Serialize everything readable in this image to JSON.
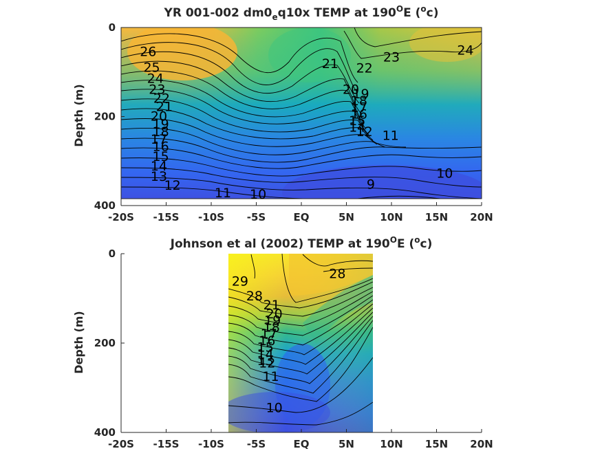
{
  "chart_data": [
    {
      "type": "heatmap",
      "title_parts": [
        "YR 001-002 dm0",
        "e",
        "q10x TEMP at 190",
        "O",
        "E (",
        "o",
        "c)"
      ],
      "ylabel": "Depth (m)",
      "xticks": [
        "-20S",
        "-15S",
        "-10S",
        "-5S",
        "EQ",
        "5N",
        "10N",
        "15N",
        "20N"
      ],
      "yticks": [
        "0",
        "200",
        "400"
      ],
      "xlim": [
        -20,
        20
      ],
      "ylim": [
        0,
        400
      ],
      "data_extent": {
        "lat": [
          -20,
          20
        ],
        "depth": [
          5,
          385
        ]
      },
      "colormap": [
        "#3e26a8",
        "#2e58f0",
        "#1d8fd9",
        "#18b2a6",
        "#59c96b",
        "#b7c93a",
        "#f9bd38",
        "#f9fb15"
      ],
      "clim": [
        9,
        29
      ],
      "contour_labels": [
        {
          "text": "26",
          "lat": -17.0,
          "depth": 55
        },
        {
          "text": "25",
          "lat": -16.6,
          "depth": 90
        },
        {
          "text": "24",
          "lat": -16.2,
          "depth": 115
        },
        {
          "text": "23",
          "lat": -16.0,
          "depth": 140
        },
        {
          "text": "22",
          "lat": -15.5,
          "depth": 160
        },
        {
          "text": "21",
          "lat": -15.2,
          "depth": 178
        },
        {
          "text": "20",
          "lat": -15.8,
          "depth": 200
        },
        {
          "text": "19",
          "lat": -15.6,
          "depth": 218
        },
        {
          "text": "18",
          "lat": -15.6,
          "depth": 235
        },
        {
          "text": "17",
          "lat": -15.8,
          "depth": 252
        },
        {
          "text": "16",
          "lat": -15.6,
          "depth": 268
        },
        {
          "text": "15",
          "lat": -15.6,
          "depth": 290
        },
        {
          "text": "14",
          "lat": -15.8,
          "depth": 312
        },
        {
          "text": "13",
          "lat": -15.8,
          "depth": 335
        },
        {
          "text": "12",
          "lat": -14.3,
          "depth": 355
        },
        {
          "text": "11",
          "lat": -8.7,
          "depth": 372
        },
        {
          "text": "10",
          "lat": -4.8,
          "depth": 375
        },
        {
          "text": "21",
          "lat": 3.2,
          "depth": 82
        },
        {
          "text": "22",
          "lat": 7.0,
          "depth": 92
        },
        {
          "text": "23",
          "lat": 10.0,
          "depth": 67
        },
        {
          "text": "24",
          "lat": 18.2,
          "depth": 52
        },
        {
          "text": "20",
          "lat": 5.5,
          "depth": 140
        },
        {
          "text": "19",
          "lat": 6.6,
          "depth": 150
        },
        {
          "text": "18",
          "lat": 6.4,
          "depth": 165
        },
        {
          "text": "17",
          "lat": 6.4,
          "depth": 180
        },
        {
          "text": "16",
          "lat": 6.4,
          "depth": 195
        },
        {
          "text": "15",
          "lat": 6.2,
          "depth": 210
        },
        {
          "text": "14",
          "lat": 6.2,
          "depth": 225
        },
        {
          "text": "12",
          "lat": 7.0,
          "depth": 235
        },
        {
          "text": "11",
          "lat": 9.9,
          "depth": 243
        },
        {
          "text": "10",
          "lat": 15.9,
          "depth": 328
        },
        {
          "text": "9",
          "lat": 7.7,
          "depth": 353
        }
      ]
    },
    {
      "type": "heatmap",
      "title_parts": [
        "Johnson et al (2002) TEMP at 190",
        "O",
        "E (",
        "o",
        "c)"
      ],
      "ylabel": "Depth (m)",
      "xticks": [
        "-20S",
        "-15S",
        "-10S",
        "-5S",
        "EQ",
        "5N",
        "10N",
        "15N",
        "20N"
      ],
      "yticks": [
        "0",
        "200",
        "400"
      ],
      "xlim": [
        -20,
        20
      ],
      "ylim": [
        0,
        400
      ],
      "data_extent": {
        "lat": [
          -8,
          8
        ],
        "depth": [
          0,
          400
        ]
      },
      "colormap": [
        "#3e26a8",
        "#2e58f0",
        "#1d8fd9",
        "#18b2a6",
        "#59c96b",
        "#b7c93a",
        "#f9bd38",
        "#f9fb15"
      ],
      "clim": [
        9,
        29
      ],
      "contour_labels": [
        {
          "text": "29",
          "lat": -6.8,
          "depth": 62
        },
        {
          "text": "28",
          "lat": -5.2,
          "depth": 95
        },
        {
          "text": "28",
          "lat": 4.0,
          "depth": 45
        },
        {
          "text": "21",
          "lat": -3.3,
          "depth": 115
        },
        {
          "text": "20",
          "lat": -3.0,
          "depth": 135
        },
        {
          "text": "19",
          "lat": -3.2,
          "depth": 150
        },
        {
          "text": "18",
          "lat": -3.3,
          "depth": 165
        },
        {
          "text": "17",
          "lat": -3.6,
          "depth": 180
        },
        {
          "text": "16",
          "lat": -3.8,
          "depth": 195
        },
        {
          "text": "15",
          "lat": -4.0,
          "depth": 210
        },
        {
          "text": "14",
          "lat": -4.0,
          "depth": 225
        },
        {
          "text": "13",
          "lat": -4.0,
          "depth": 240
        },
        {
          "text": "12",
          "lat": -3.8,
          "depth": 245
        },
        {
          "text": "11",
          "lat": -3.4,
          "depth": 275
        },
        {
          "text": "10",
          "lat": -3.0,
          "depth": 345
        }
      ]
    }
  ]
}
